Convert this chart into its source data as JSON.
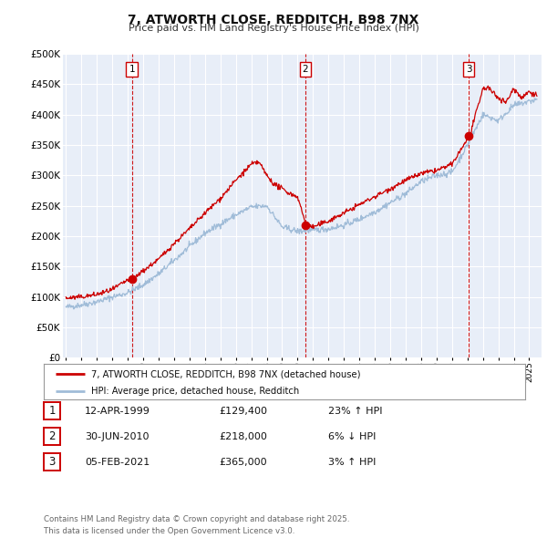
{
  "title": "7, ATWORTH CLOSE, REDDITCH, B98 7NX",
  "subtitle": "Price paid vs. HM Land Registry's House Price Index (HPI)",
  "bg_color": "#ffffff",
  "plot_bg_color": "#e8eef8",
  "grid_color": "#ffffff",
  "hpi_line_color": "#a0bcd8",
  "price_line_color": "#cc0000",
  "sale_dot_color": "#cc0000",
  "vline_color": "#cc0000",
  "ylim": [
    0,
    500000
  ],
  "yticks": [
    0,
    50000,
    100000,
    150000,
    200000,
    250000,
    300000,
    350000,
    400000,
    450000,
    500000
  ],
  "xlim_start": 1994.8,
  "xlim_end": 2025.8,
  "legend_label_price": "7, ATWORTH CLOSE, REDDITCH, B98 7NX (detached house)",
  "legend_label_hpi": "HPI: Average price, detached house, Redditch",
  "sales": [
    {
      "label": "1",
      "date": 1999.27,
      "price": 129400,
      "pct": "23%",
      "dir": "↑",
      "date_str": "12-APR-1999"
    },
    {
      "label": "2",
      "date": 2010.5,
      "price": 218000,
      "pct": "6%",
      "dir": "↓",
      "date_str": "30-JUN-2010"
    },
    {
      "label": "3",
      "date": 2021.09,
      "price": 365000,
      "pct": "3%",
      "dir": "↑",
      "date_str": "05-FEB-2021"
    }
  ],
  "footer": "Contains HM Land Registry data © Crown copyright and database right 2025.\nThis data is licensed under the Open Government Licence v3.0."
}
